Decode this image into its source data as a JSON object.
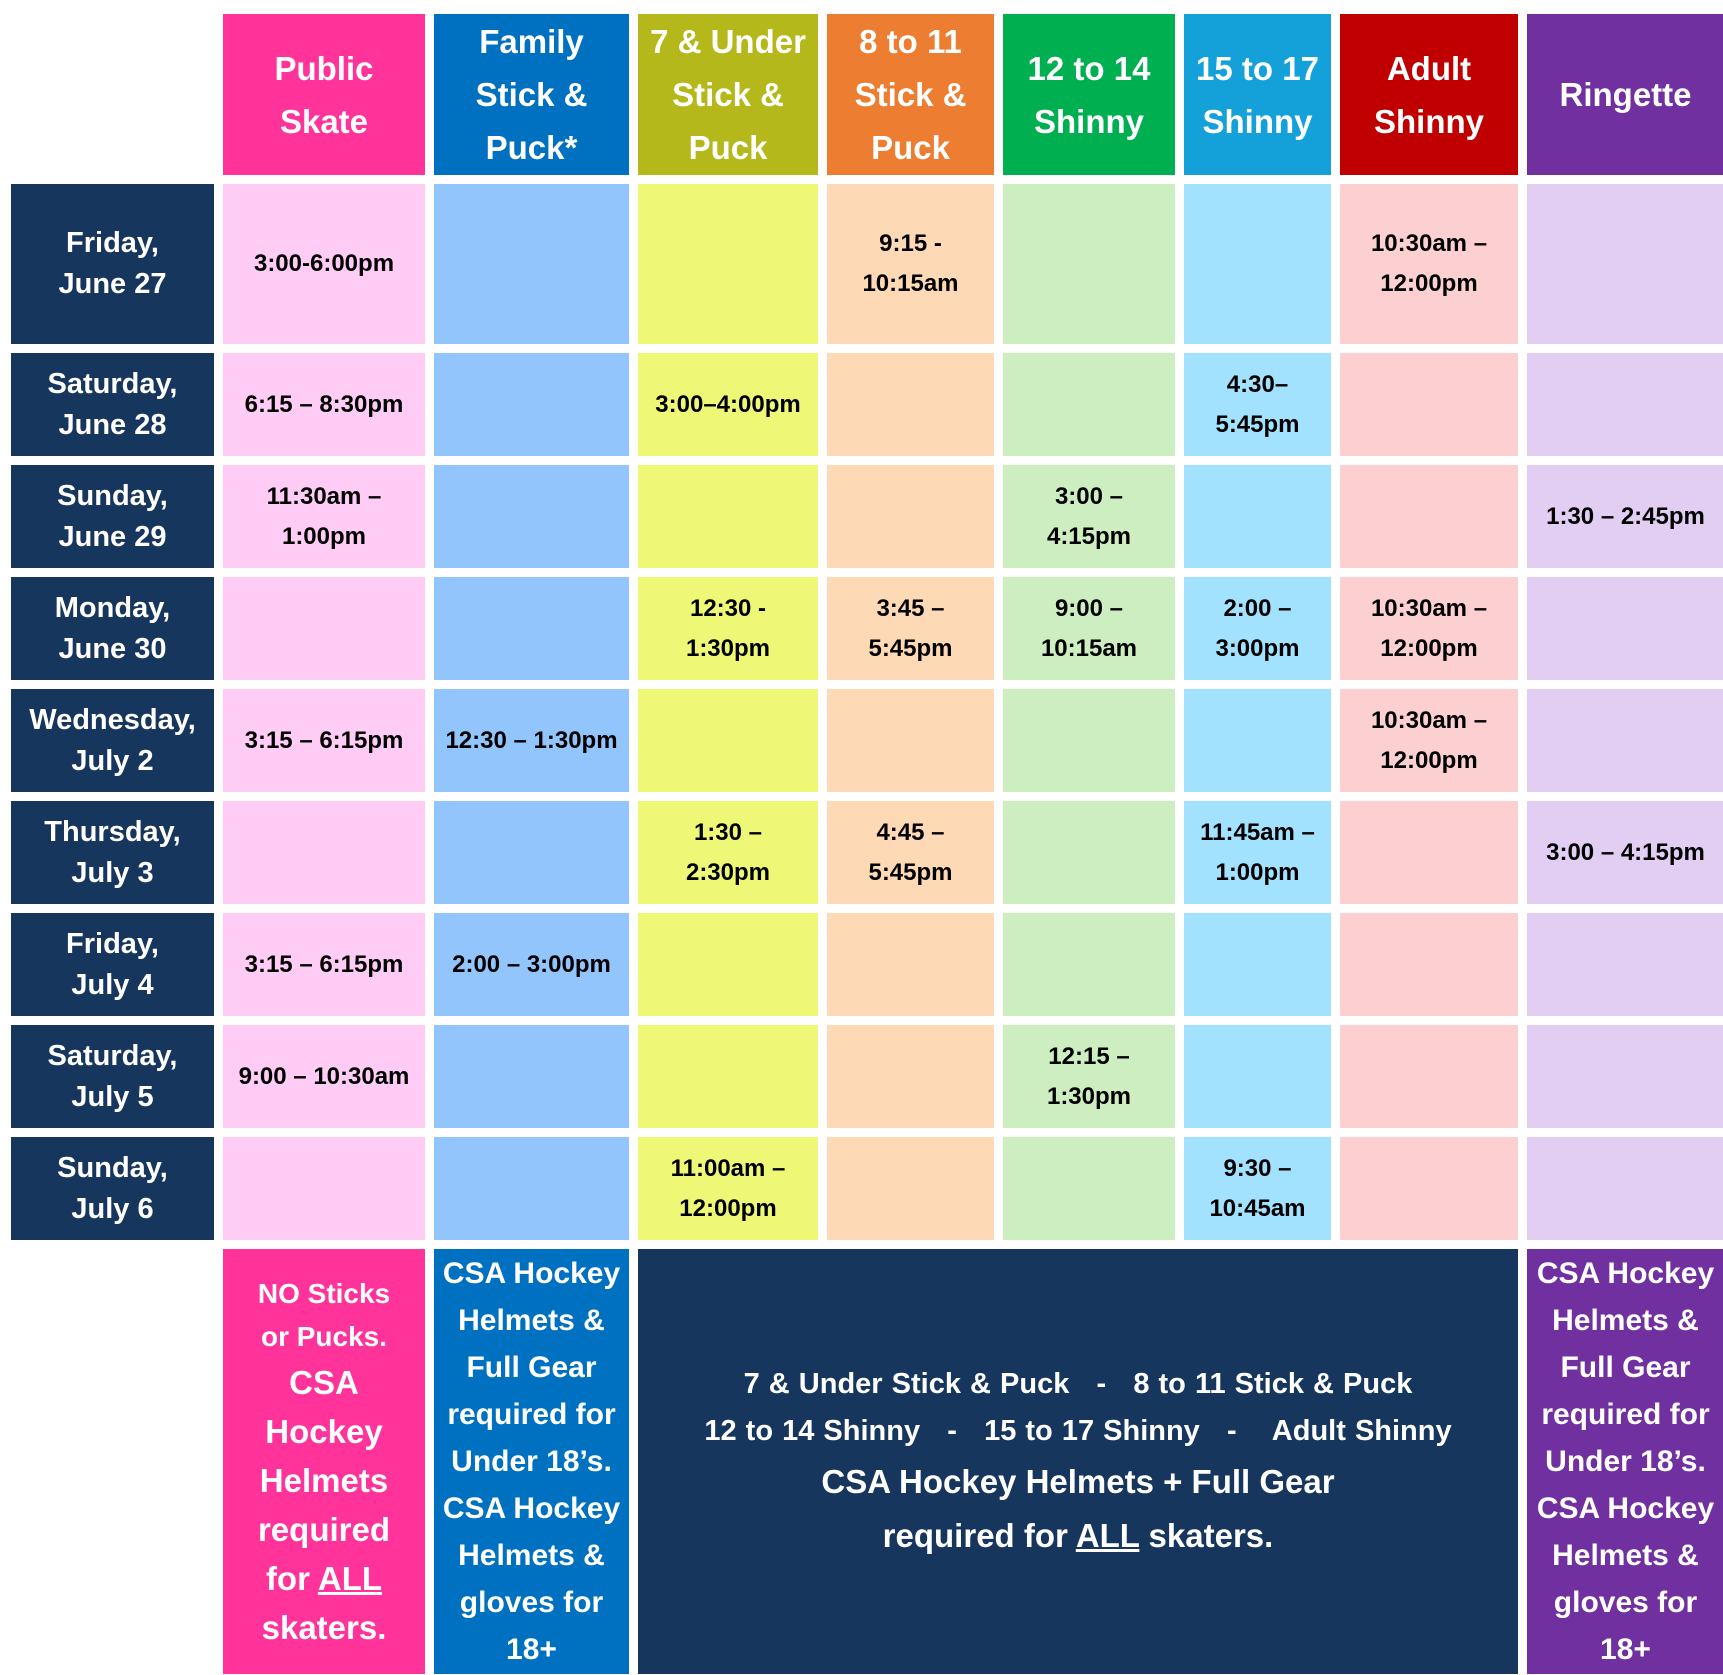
{
  "columns": [
    {
      "label": "Public\nSkate",
      "header_color": "#ff3399",
      "cell_color": "#ffccf5"
    },
    {
      "label": "Family\nStick &\nPuck*",
      "header_color": "#0070c0",
      "cell_color": "#93c5fd"
    },
    {
      "label": "7 & Under\nStick &\nPuck",
      "header_color": "#b5b81a",
      "cell_color": "#eef776"
    },
    {
      "label": "8 to 11\nStick &\nPuck",
      "header_color": "#ed7d31",
      "cell_color": "#fdd9b5"
    },
    {
      "label": "12 to 14\nShinny",
      "header_color": "#00b050",
      "cell_color": "#cdeec0"
    },
    {
      "label": "15 to 17\nShinny",
      "header_color": "#14a1d9",
      "cell_color": "#a3e2ff"
    },
    {
      "label": "Adult\nShinny",
      "header_color": "#c00000",
      "cell_color": "#fcd0d0"
    },
    {
      "label": "Ringette",
      "header_color": "#7030a0",
      "cell_color": "#e2cdf3"
    }
  ],
  "rows": [
    {
      "day": "Friday,\nJune 27",
      "slots": [
        "3:00-6:00pm",
        "",
        "",
        "9:15 -\n10:15am",
        "",
        "",
        "10:30am –\n12:00pm",
        ""
      ]
    },
    {
      "day": "Saturday,\nJune 28",
      "slots": [
        "6:15 – 8:30pm",
        "",
        "3:00–4:00pm",
        "",
        "",
        "4:30–\n5:45pm",
        "",
        ""
      ]
    },
    {
      "day": "Sunday,\nJune 29",
      "slots": [
        "11:30am –\n1:00pm",
        "",
        "",
        "",
        "3:00 –\n4:15pm",
        "",
        "",
        "1:30 – 2:45pm"
      ]
    },
    {
      "day": "Monday,\nJune 30",
      "slots": [
        "",
        "",
        "12:30 -\n1:30pm",
        "3:45 –\n5:45pm",
        "9:00 –\n10:15am",
        "2:00 –\n3:00pm",
        "10:30am –\n12:00pm",
        ""
      ]
    },
    {
      "day": "Wednesday,\nJuly 2",
      "slots": [
        "3:15 – 6:15pm",
        "12:30 – 1:30pm",
        "",
        "",
        "",
        "",
        "10:30am –\n12:00pm",
        ""
      ]
    },
    {
      "day": "Thursday,\nJuly 3",
      "slots": [
        "",
        "",
        "1:30 –\n2:30pm",
        "4:45 –\n5:45pm",
        "",
        "11:45am –\n1:00pm",
        "",
        "3:00 – 4:15pm"
      ]
    },
    {
      "day": "Friday,\nJuly 4",
      "slots": [
        "3:15 – 6:15pm",
        "2:00 – 3:00pm",
        "",
        "",
        "",
        "",
        "",
        ""
      ]
    },
    {
      "day": "Saturday,\nJuly 5",
      "slots": [
        "9:00 – 10:30am",
        "",
        "",
        "",
        "12:15 –\n1:30pm",
        "",
        "",
        ""
      ]
    },
    {
      "day": "Sunday,\nJuly 6",
      "slots": [
        "",
        "",
        "11:00am –\n12:00pm",
        "",
        "",
        "9:30 –\n10:45am",
        "",
        ""
      ]
    }
  ],
  "notes": {
    "public_skate": {
      "small": "NO Sticks\nor Pucks.",
      "big_before": "CSA\nHockey\nHelmets\nrequired\nfor ",
      "big_underlined": "ALL",
      "big_after": "\nskaters."
    },
    "family": "CSA Hockey\nHelmets &\nFull Gear\nrequired for\nUnder 18’s.\nCSA Hockey\nHelmets &\ngloves for\n18+",
    "combined": {
      "line1": "7 & Under Stick & Puck   -   8 to 11 Stick & Puck",
      "line2": "12 to 14 Shinny   -   15 to 17 Shinny   -    Adult Shinny",
      "line3": "CSA Hockey Helmets + Full Gear",
      "line4_before": "required for ",
      "line4_underlined": "ALL",
      "line4_after": " skaters."
    },
    "ringette": "CSA Hockey\nHelmets &\nFull Gear\nrequired for\nUnder 18’s.\nCSA Hockey\nHelmets &\ngloves for\n18+"
  }
}
